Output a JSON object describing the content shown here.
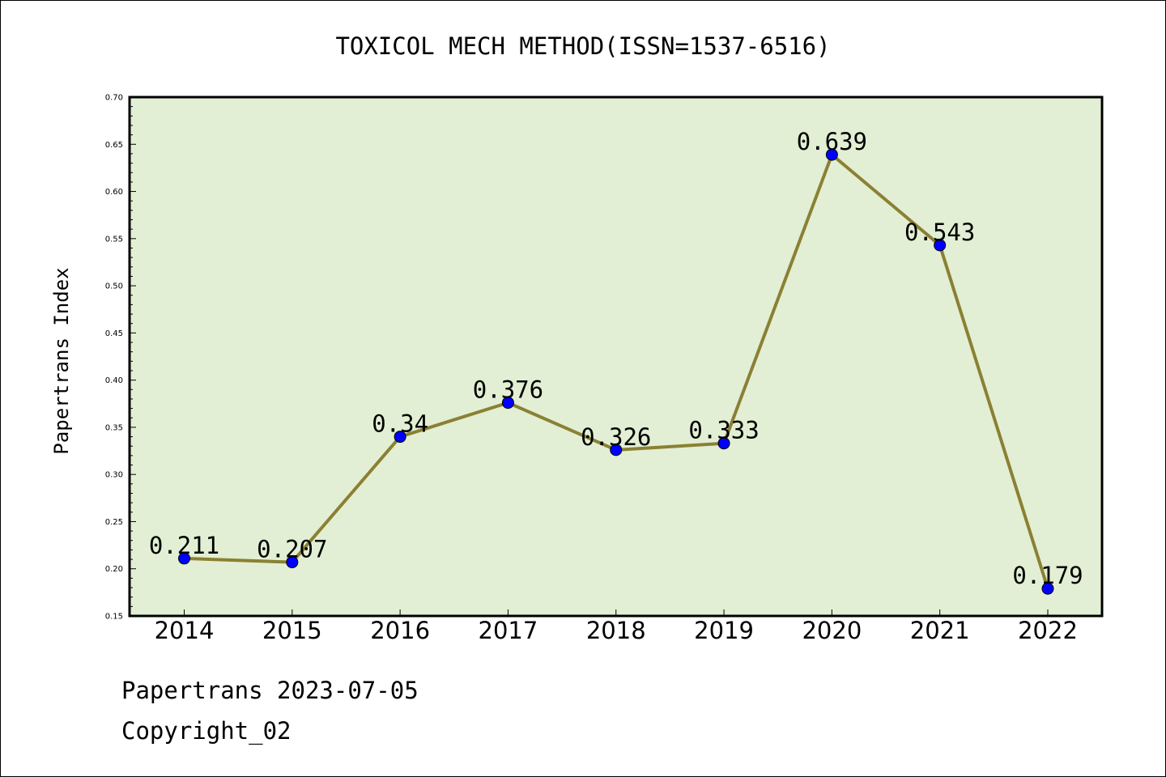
{
  "chart_data": {
    "type": "line",
    "title": "TOXICOL MECH METHOD(ISSN=1537-6516)",
    "xlabel": "",
    "ylabel": "Papertrans Index",
    "categories": [
      "2014",
      "2015",
      "2016",
      "2017",
      "2018",
      "2019",
      "2020",
      "2021",
      "2022"
    ],
    "series": [
      {
        "values": [
          0.211,
          0.207,
          0.34,
          0.376,
          0.326,
          0.333,
          0.639,
          0.543,
          0.179
        ],
        "labels": [
          "0.211",
          "0.207",
          "0.34",
          "0.376",
          "0.326",
          "0.333",
          "0.639",
          "0.543",
          "0.179"
        ]
      }
    ],
    "ylim": [
      0.15,
      0.7
    ],
    "yticks": [
      "0.15",
      "0.20",
      "0.25",
      "0.30",
      "0.35",
      "0.40",
      "0.45",
      "0.50",
      "0.55",
      "0.60",
      "0.65",
      "0.70"
    ],
    "grid": false,
    "legend": "none",
    "colors": {
      "plot_background": "#e2efd4",
      "line": "#8b8033",
      "marker": "#0000ff"
    }
  },
  "footer": {
    "line1": "Papertrans 2023-07-05",
    "line2": "Copyright_02"
  }
}
